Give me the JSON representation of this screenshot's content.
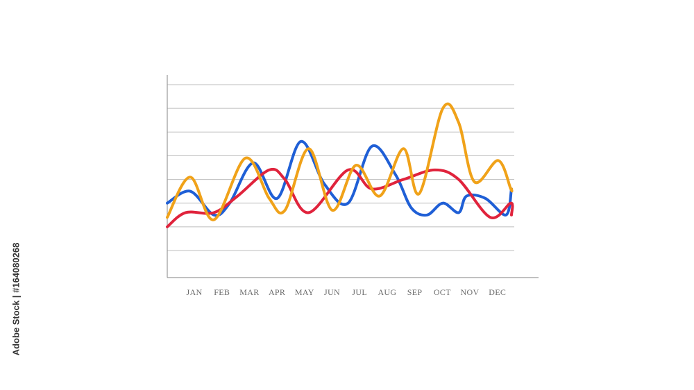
{
  "chart_data": {
    "type": "line",
    "title": "",
    "xlabel": "",
    "ylabel": "",
    "categories": [
      "JAN",
      "FEB",
      "MAR",
      "APR",
      "MAY",
      "JUN",
      "JUL",
      "AUG",
      "SEP",
      "OCT",
      "NOV",
      "DEC"
    ],
    "ylim": [
      0,
      7
    ],
    "grid": true,
    "series": [
      {
        "color": "#1f5fd6",
        "x": [
          0,
          0.75,
          1.5,
          2.0,
          2.75,
          3.5,
          4.25,
          5.0,
          5.75,
          6.5,
          7.25,
          7.75,
          8.25,
          8.75,
          9.25,
          9.5,
          10.1,
          10.75,
          11.5
        ],
        "values": [
          2.0,
          2.5,
          1.5,
          2.0,
          3.7,
          2.2,
          4.6,
          2.8,
          2.0,
          4.4,
          3.2,
          1.8,
          1.5,
          2.0,
          1.6,
          2.3,
          2.2,
          1.5,
          2.6
        ]
      },
      {
        "color": "#e0233c",
        "x": [
          0,
          0.6,
          1.5,
          2.25,
          3.25,
          3.75,
          4.5,
          5.75,
          6.5,
          7.5,
          8.5,
          9.25,
          10.25,
          10.9,
          11.5
        ],
        "values": [
          1.0,
          1.6,
          1.6,
          2.3,
          3.4,
          3.0,
          1.6,
          3.4,
          2.6,
          3.0,
          3.4,
          3.0,
          1.4,
          2.0,
          1.5
        ],
        "note": ""
      },
      {
        "color": "#f0a219",
        "x": [
          0,
          0.75,
          1.5,
          2.5,
          3.25,
          3.75,
          4.5,
          5.25,
          6.0,
          6.75,
          7.5,
          8.0,
          8.75,
          9.25,
          9.75,
          10.5,
          10.9,
          11.5
        ],
        "values": [
          1.4,
          3.1,
          1.3,
          3.9,
          2.2,
          1.7,
          4.3,
          1.7,
          3.6,
          2.3,
          4.3,
          2.4,
          6.0,
          5.4,
          2.9,
          3.8,
          2.6,
          2.6
        ]
      }
    ]
  },
  "side_credit": "Adobe Stock | #164080268"
}
